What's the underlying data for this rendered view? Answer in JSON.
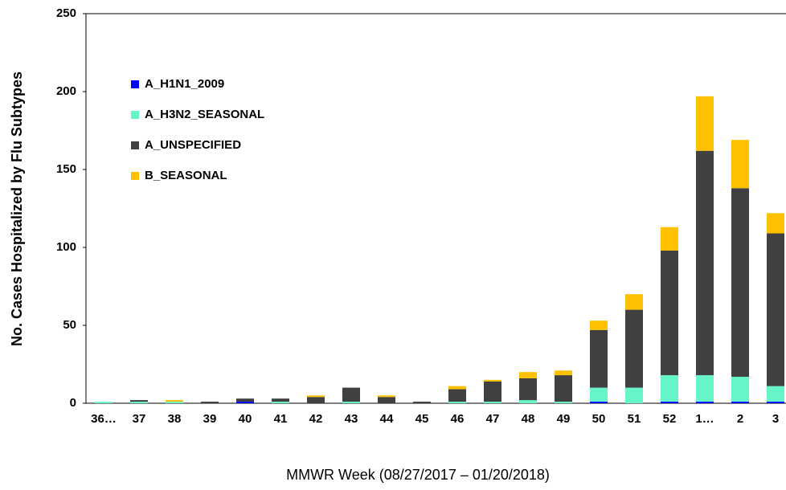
{
  "chart_data": {
    "type": "stacked-bar",
    "x_label": "MMWR Week (08/27/2017 – 01/20/2018)",
    "y_label": "No. Cases Hospitalized by Flu Subtypes",
    "categories": [
      "36…",
      "37",
      "38",
      "39",
      "40",
      "41",
      "42",
      "43",
      "44",
      "45",
      "46",
      "47",
      "48",
      "49",
      "50",
      "51",
      "52",
      "1…",
      "2",
      "3"
    ],
    "series": [
      {
        "name": "A_H1N1_2009",
        "color": "#0000ff",
        "values": [
          0,
          0,
          0,
          0,
          1,
          0,
          0,
          0,
          0,
          0,
          0,
          0,
          0,
          0,
          1,
          0,
          1,
          1,
          1,
          1
        ]
      },
      {
        "name": "A_H3N2_SEASONAL",
        "color": "#66f5c8",
        "values": [
          1,
          1,
          1,
          0,
          0,
          1,
          0,
          1,
          0,
          0,
          1,
          1,
          2,
          1,
          9,
          10,
          17,
          17,
          16,
          10
        ]
      },
      {
        "name": "A_UNSPECIFIED",
        "color": "#404040",
        "values": [
          0,
          1,
          0,
          1,
          2,
          2,
          4,
          9,
          4,
          1,
          8,
          13,
          14,
          17,
          37,
          50,
          80,
          144,
          121,
          98
        ]
      },
      {
        "name": "B_SEASONAL",
        "color": "#ffc000",
        "values": [
          0,
          0,
          1,
          0,
          0,
          0,
          1,
          0,
          1,
          0,
          2,
          1,
          4,
          3,
          6,
          10,
          15,
          35,
          31,
          13
        ]
      }
    ],
    "ylim": [
      0,
      250
    ],
    "yticks": [
      0,
      50,
      100,
      150,
      200,
      250
    ],
    "grid": false,
    "legend": "upper-left"
  }
}
